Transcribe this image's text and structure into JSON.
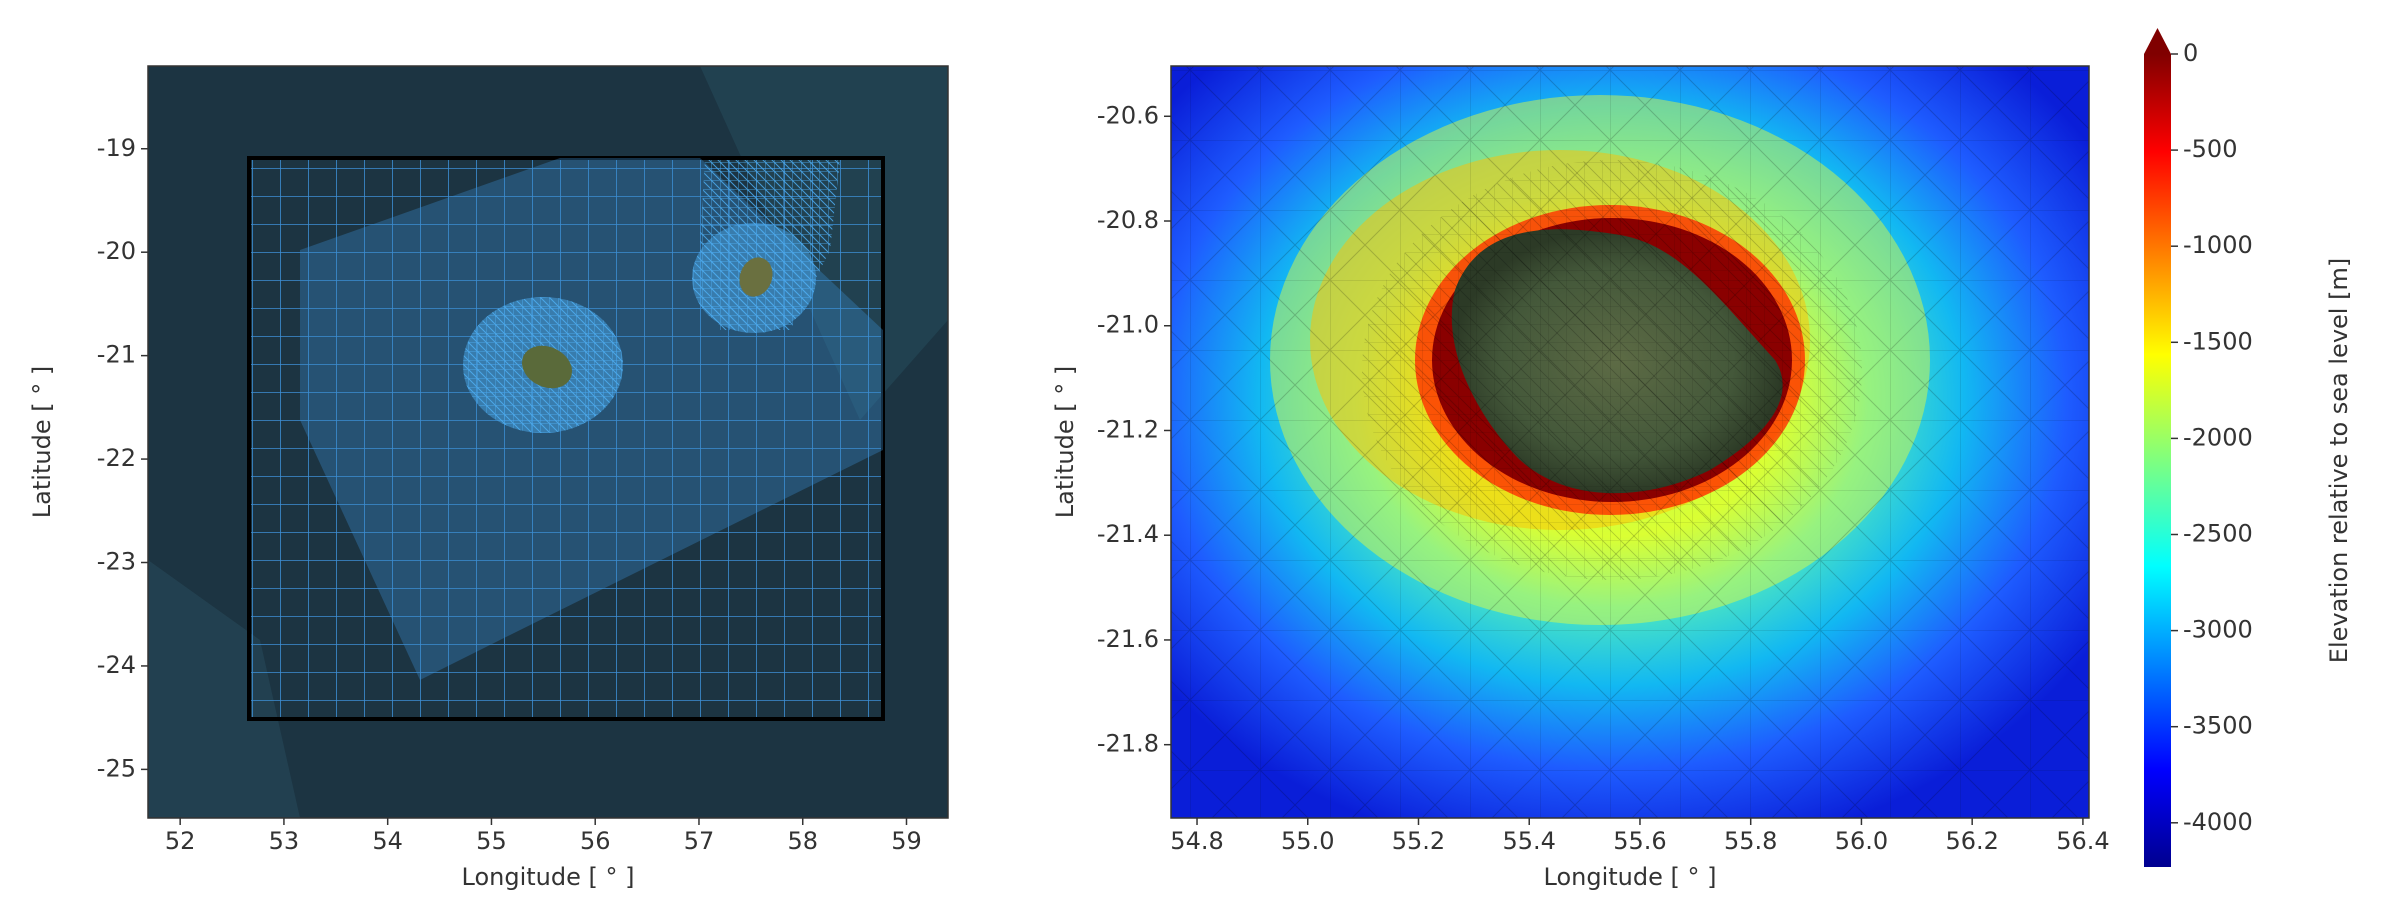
{
  "chart_data": [
    {
      "type": "map",
      "xlabel": "Longitude [ ° ]",
      "ylabel": "Latitude [ ° ]",
      "xlim": [
        51.69,
        59.4
      ],
      "ylim": [
        -25.47,
        -18.2
      ],
      "xticks": [
        52,
        53,
        54,
        55,
        56,
        57,
        58,
        59
      ],
      "yticks": [
        -19,
        -20,
        -21,
        -22,
        -23,
        -24,
        -25
      ]
    },
    {
      "type": "map",
      "xlabel": "Longitude [ ° ]",
      "ylabel": "Latitude [ ° ]",
      "xlim": [
        54.753,
        56.411
      ],
      "ylim": [
        -21.94,
        -20.504
      ],
      "xticks": [
        54.8,
        {
          "value": 55,
          "label": "55.0"
        },
        55.2,
        55.4,
        55.6,
        55.8,
        {
          "value": 56,
          "label": "56.0"
        },
        56.2,
        56.4
      ],
      "yticks": [
        -20.6,
        -20.8,
        {
          "value": -21,
          "label": "-21.0"
        },
        -21.2,
        -21.4,
        -21.6,
        -21.8
      ],
      "colorbar": {
        "label": "Elevation relative to sea level [m]",
        "lim": [
          -4230,
          0
        ],
        "ticks": [
          0,
          -500,
          -1000,
          -1500,
          -2000,
          -2500,
          -3000,
          -3500,
          -4000
        ]
      }
    }
  ]
}
